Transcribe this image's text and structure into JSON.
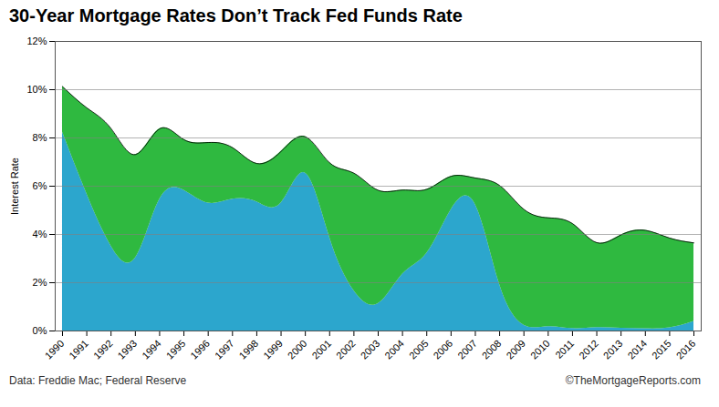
{
  "chart_data": {
    "type": "area",
    "title": "30-Year Mortgage Rates Don’t Track Fed Funds Rate",
    "ylabel": "Interest Rate",
    "annotations": [
      "Data: Freddie Mac; Federal Reserve",
      "©TheMortgageReports.com"
    ],
    "x": [
      1990,
      1991,
      1992,
      1993,
      1994,
      1995,
      1996,
      1997,
      1998,
      1999,
      2000,
      2001,
      2002,
      2003,
      2004,
      2005,
      2006,
      2007,
      2008,
      2009,
      2010,
      2011,
      2012,
      2013,
      2014,
      2015,
      2016
    ],
    "series": [
      {
        "color": "#1a9ec9",
        "values": [
          8.25,
          5.69,
          3.52,
          3.02,
          5.45,
          5.83,
          5.3,
          5.46,
          5.35,
          5.3,
          6.54,
          3.88,
          1.67,
          1.13,
          2.35,
          3.22,
          5.02,
          5.24,
          1.92,
          0.24,
          0.18,
          0.1,
          0.14,
          0.11,
          0.09,
          0.13,
          0.4
        ]
      },
      {
        "color": "#1db330",
        "values": [
          10.13,
          9.25,
          8.39,
          7.31,
          8.38,
          7.93,
          7.81,
          7.6,
          6.94,
          7.44,
          8.05,
          6.97,
          6.54,
          5.83,
          5.84,
          5.87,
          6.41,
          6.34,
          6.03,
          5.04,
          4.69,
          4.45,
          3.66,
          3.98,
          4.17,
          3.85,
          3.65
        ]
      }
    ],
    "xlim": [
      1989.7,
      2016.3
    ],
    "xticks": [
      1990,
      1991,
      1992,
      1993,
      1994,
      1995,
      1996,
      1997,
      1998,
      1999,
      2000,
      2001,
      2002,
      2003,
      2004,
      2005,
      2006,
      2007,
      2008,
      2009,
      2010,
      2011,
      2012,
      2013,
      2014,
      2015,
      2016
    ],
    "ylim": [
      0,
      12
    ],
    "yticks": [
      {
        "value": 0,
        "label": "0%"
      },
      {
        "value": 2,
        "label": "2%"
      },
      {
        "value": 4,
        "label": "4%"
      },
      {
        "value": 6,
        "label": "6%"
      },
      {
        "value": 8,
        "label": "8%"
      },
      {
        "value": 10,
        "label": "10%"
      },
      {
        "value": 12,
        "label": "12%"
      }
    ],
    "grid": true
  }
}
